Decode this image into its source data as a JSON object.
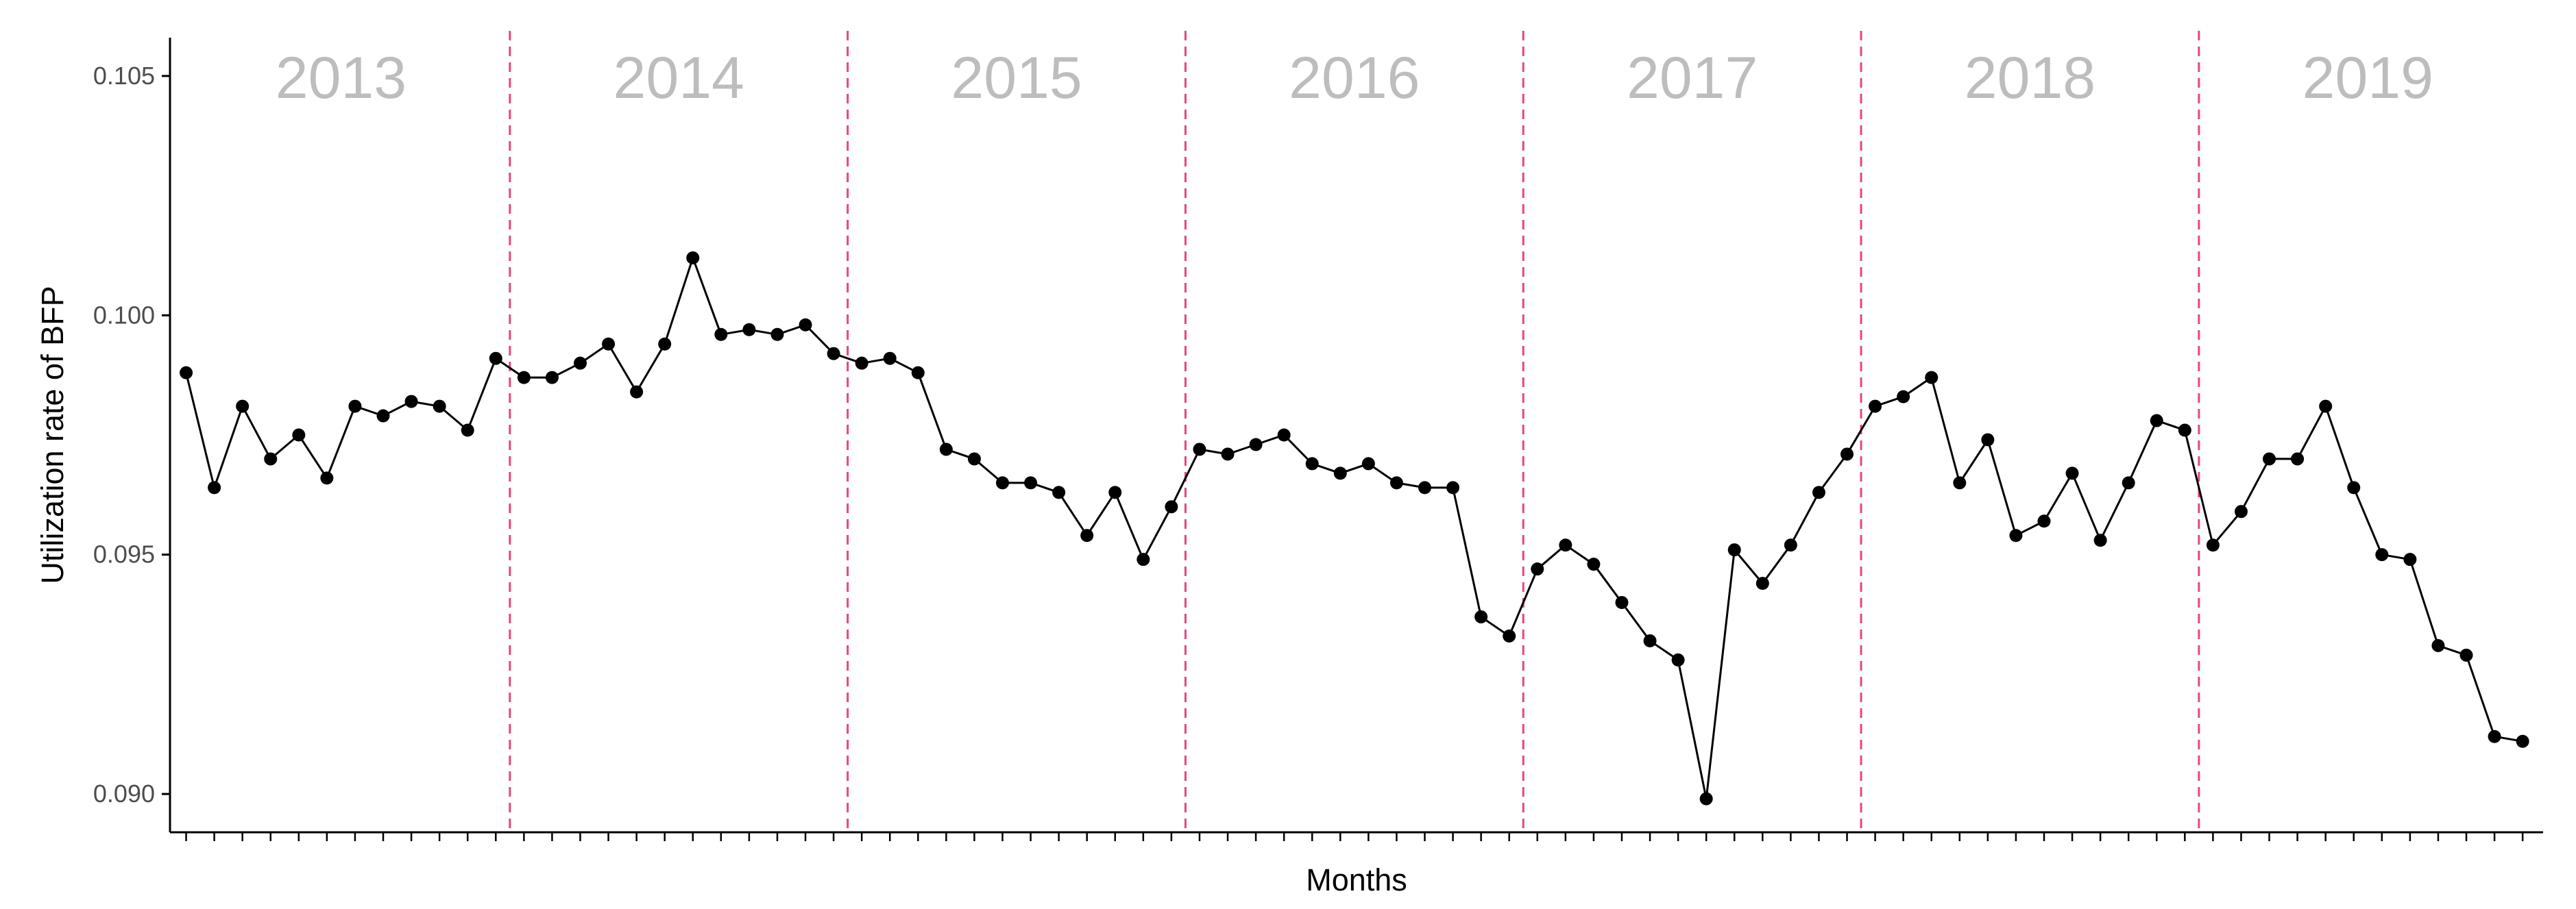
{
  "chart_data": {
    "type": "line",
    "title": "",
    "xlabel": "Months",
    "ylabel": "Utilization rate of BFP",
    "ylim": [
      0.0892,
      0.1058
    ],
    "yticks": [
      "0.090",
      "0.095",
      "0.100",
      "0.105"
    ],
    "ytick_values": [
      0.09,
      0.095,
      0.1,
      0.105
    ],
    "grid": false,
    "legend": "none",
    "markers": true,
    "colors": {
      "line": "#000000",
      "point": "#000000",
      "divider": "#e8457a",
      "year_label": "#bdbdbd",
      "axis": "#000000",
      "tick_label": "#4d4d4d"
    },
    "periods": [
      {
        "label": "2013",
        "months": [
          1,
          12
        ]
      },
      {
        "label": "2014",
        "months": [
          13,
          24
        ]
      },
      {
        "label": "2015",
        "months": [
          25,
          36
        ]
      },
      {
        "label": "2016",
        "months": [
          37,
          48
        ]
      },
      {
        "label": "2017",
        "months": [
          49,
          60
        ]
      },
      {
        "label": "2018",
        "months": [
          61,
          72
        ]
      },
      {
        "label": "2019",
        "months": [
          73,
          84
        ]
      }
    ],
    "dividers_after_month": [
      12,
      24,
      36,
      48,
      60,
      72
    ],
    "x": [
      1,
      2,
      3,
      4,
      5,
      6,
      7,
      8,
      9,
      10,
      11,
      12,
      13,
      14,
      15,
      16,
      17,
      18,
      19,
      20,
      21,
      22,
      23,
      24,
      25,
      26,
      27,
      28,
      29,
      30,
      31,
      32,
      33,
      34,
      35,
      36,
      37,
      38,
      39,
      40,
      41,
      42,
      43,
      44,
      45,
      46,
      47,
      48,
      49,
      50,
      51,
      52,
      53,
      54,
      55,
      56,
      57,
      58,
      59,
      60,
      61,
      62,
      63,
      64,
      65,
      66,
      67,
      68,
      69,
      70,
      71,
      72,
      73,
      74,
      75,
      76,
      77,
      78,
      79,
      80,
      81,
      82,
      83,
      84
    ],
    "series": [
      {
        "values": [
          0.0988,
          0.0964,
          0.0981,
          0.097,
          0.0975,
          0.0966,
          0.0981,
          0.0979,
          0.0982,
          0.0981,
          0.0976,
          0.0991,
          0.0987,
          0.0987,
          0.099,
          0.0994,
          0.0984,
          0.0994,
          0.1012,
          0.0996,
          0.0997,
          0.0996,
          0.0998,
          0.0992,
          0.099,
          0.0991,
          0.0988,
          0.0972,
          0.097,
          0.0965,
          0.0965,
          0.0963,
          0.0954,
          0.0963,
          0.0949,
          0.096,
          0.0972,
          0.0971,
          0.0973,
          0.0975,
          0.0969,
          0.0967,
          0.0969,
          0.0965,
          0.0964,
          0.0964,
          0.0937,
          0.0933,
          0.0947,
          0.0952,
          0.0948,
          0.094,
          0.0932,
          0.0928,
          0.0899,
          0.0951,
          0.0944,
          0.0952,
          0.0963,
          0.0971,
          0.0981,
          0.0983,
          0.0987,
          0.0965,
          0.0974,
          0.0954,
          0.0957,
          0.0967,
          0.0953,
          0.0965,
          0.0978,
          0.0976,
          0.0952,
          0.0959,
          0.097,
          0.097,
          0.0981,
          0.0964,
          0.095,
          0.0949,
          0.0931,
          0.0929,
          0.0912,
          0.0911
        ]
      }
    ]
  }
}
